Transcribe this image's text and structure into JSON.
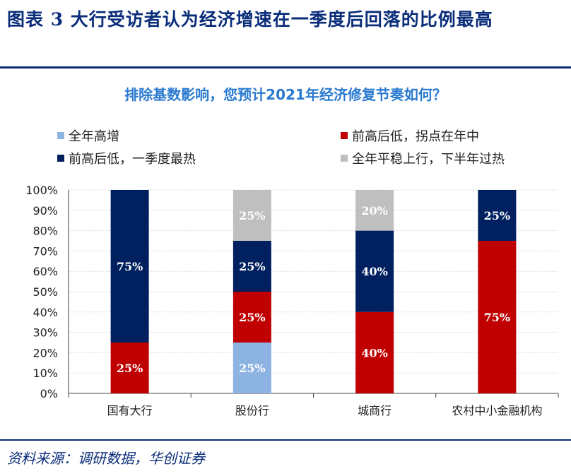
{
  "figure": {
    "title": "图表 3  大行受访者认为经济增速在一季度后回落的比例最高",
    "source": "资料来源：调研数据，华创证券"
  },
  "colors": {
    "full_year_high": "#8db3e2",
    "front_high_mid": "#c00000",
    "q1_hottest": "#002060",
    "stable_h2_overheat": "#bfbfbf",
    "title_blue": "#0a2d7a",
    "subtitle_blue": "#2a7ad0"
  },
  "chart_data": {
    "type": "bar",
    "stacked": true,
    "title": "排除基数影响，您预计2021年经济修复节奏如何？",
    "categories": [
      "国有大行",
      "股份行",
      "城商行",
      "农村中小金融机构"
    ],
    "series": [
      {
        "name": "全年高增",
        "color_key": "full_year_high",
        "values": [
          0,
          25,
          0,
          0
        ]
      },
      {
        "name": "前高后低，拐点在年中",
        "color_key": "front_high_mid",
        "values": [
          25,
          25,
          40,
          75
        ]
      },
      {
        "name": "前高后低，一季度最热",
        "color_key": "q1_hottest",
        "values": [
          75,
          25,
          40,
          25
        ]
      },
      {
        "name": "全年平稳上行，下半年过热",
        "color_key": "stable_h2_overheat",
        "values": [
          0,
          25,
          20,
          0
        ]
      }
    ],
    "ylim": [
      0,
      100
    ],
    "yticks": [
      0,
      10,
      20,
      30,
      40,
      50,
      60,
      70,
      80,
      90,
      100
    ],
    "ytick_suffix": "%",
    "data_label_suffix": "%",
    "xlabel": "",
    "ylabel": "",
    "grid": true
  }
}
